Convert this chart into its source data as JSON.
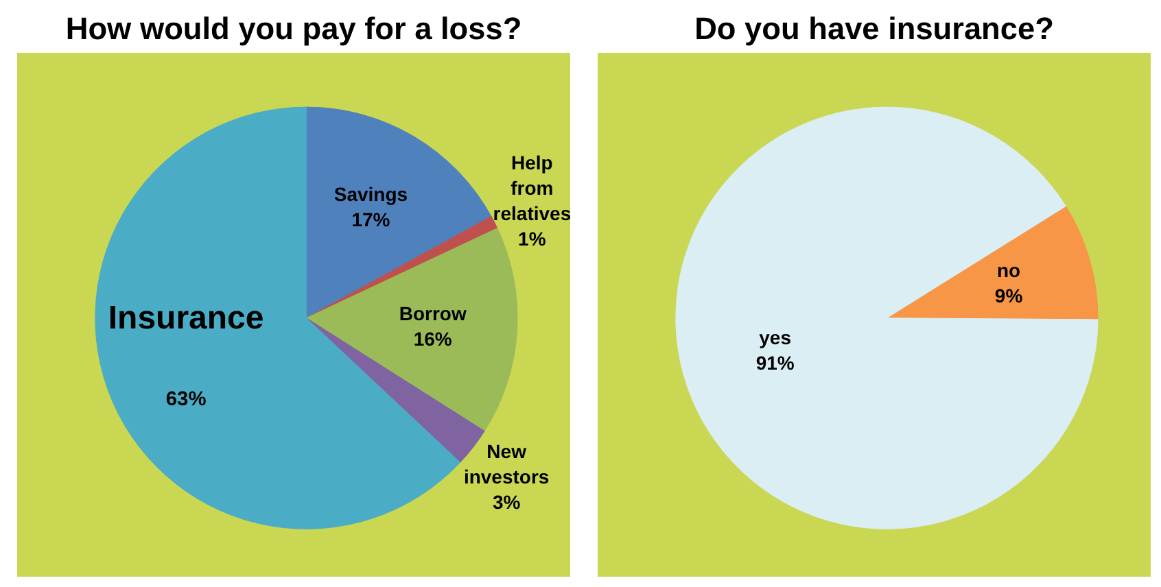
{
  "chart_data": [
    {
      "type": "pie",
      "title": "How would you pay for a loss?",
      "categories": [
        "Savings",
        "Help from relatives",
        "Borrow",
        "New investors",
        "Insurance"
      ],
      "values": [
        17,
        1,
        16,
        3,
        63
      ],
      "colors": [
        "#4f81bd",
        "#c0504d",
        "#9bbb59",
        "#8064a2",
        "#4bacc6"
      ],
      "value_labels": [
        "17%",
        "1%",
        "16%",
        "3%",
        "63%"
      ]
    },
    {
      "type": "pie",
      "title": "Do you have insurance?",
      "categories": [
        "no",
        "yes"
      ],
      "values": [
        9,
        91
      ],
      "colors": [
        "#f79646",
        "#dbeef3"
      ],
      "value_labels": [
        "9%",
        "91%"
      ]
    }
  ]
}
